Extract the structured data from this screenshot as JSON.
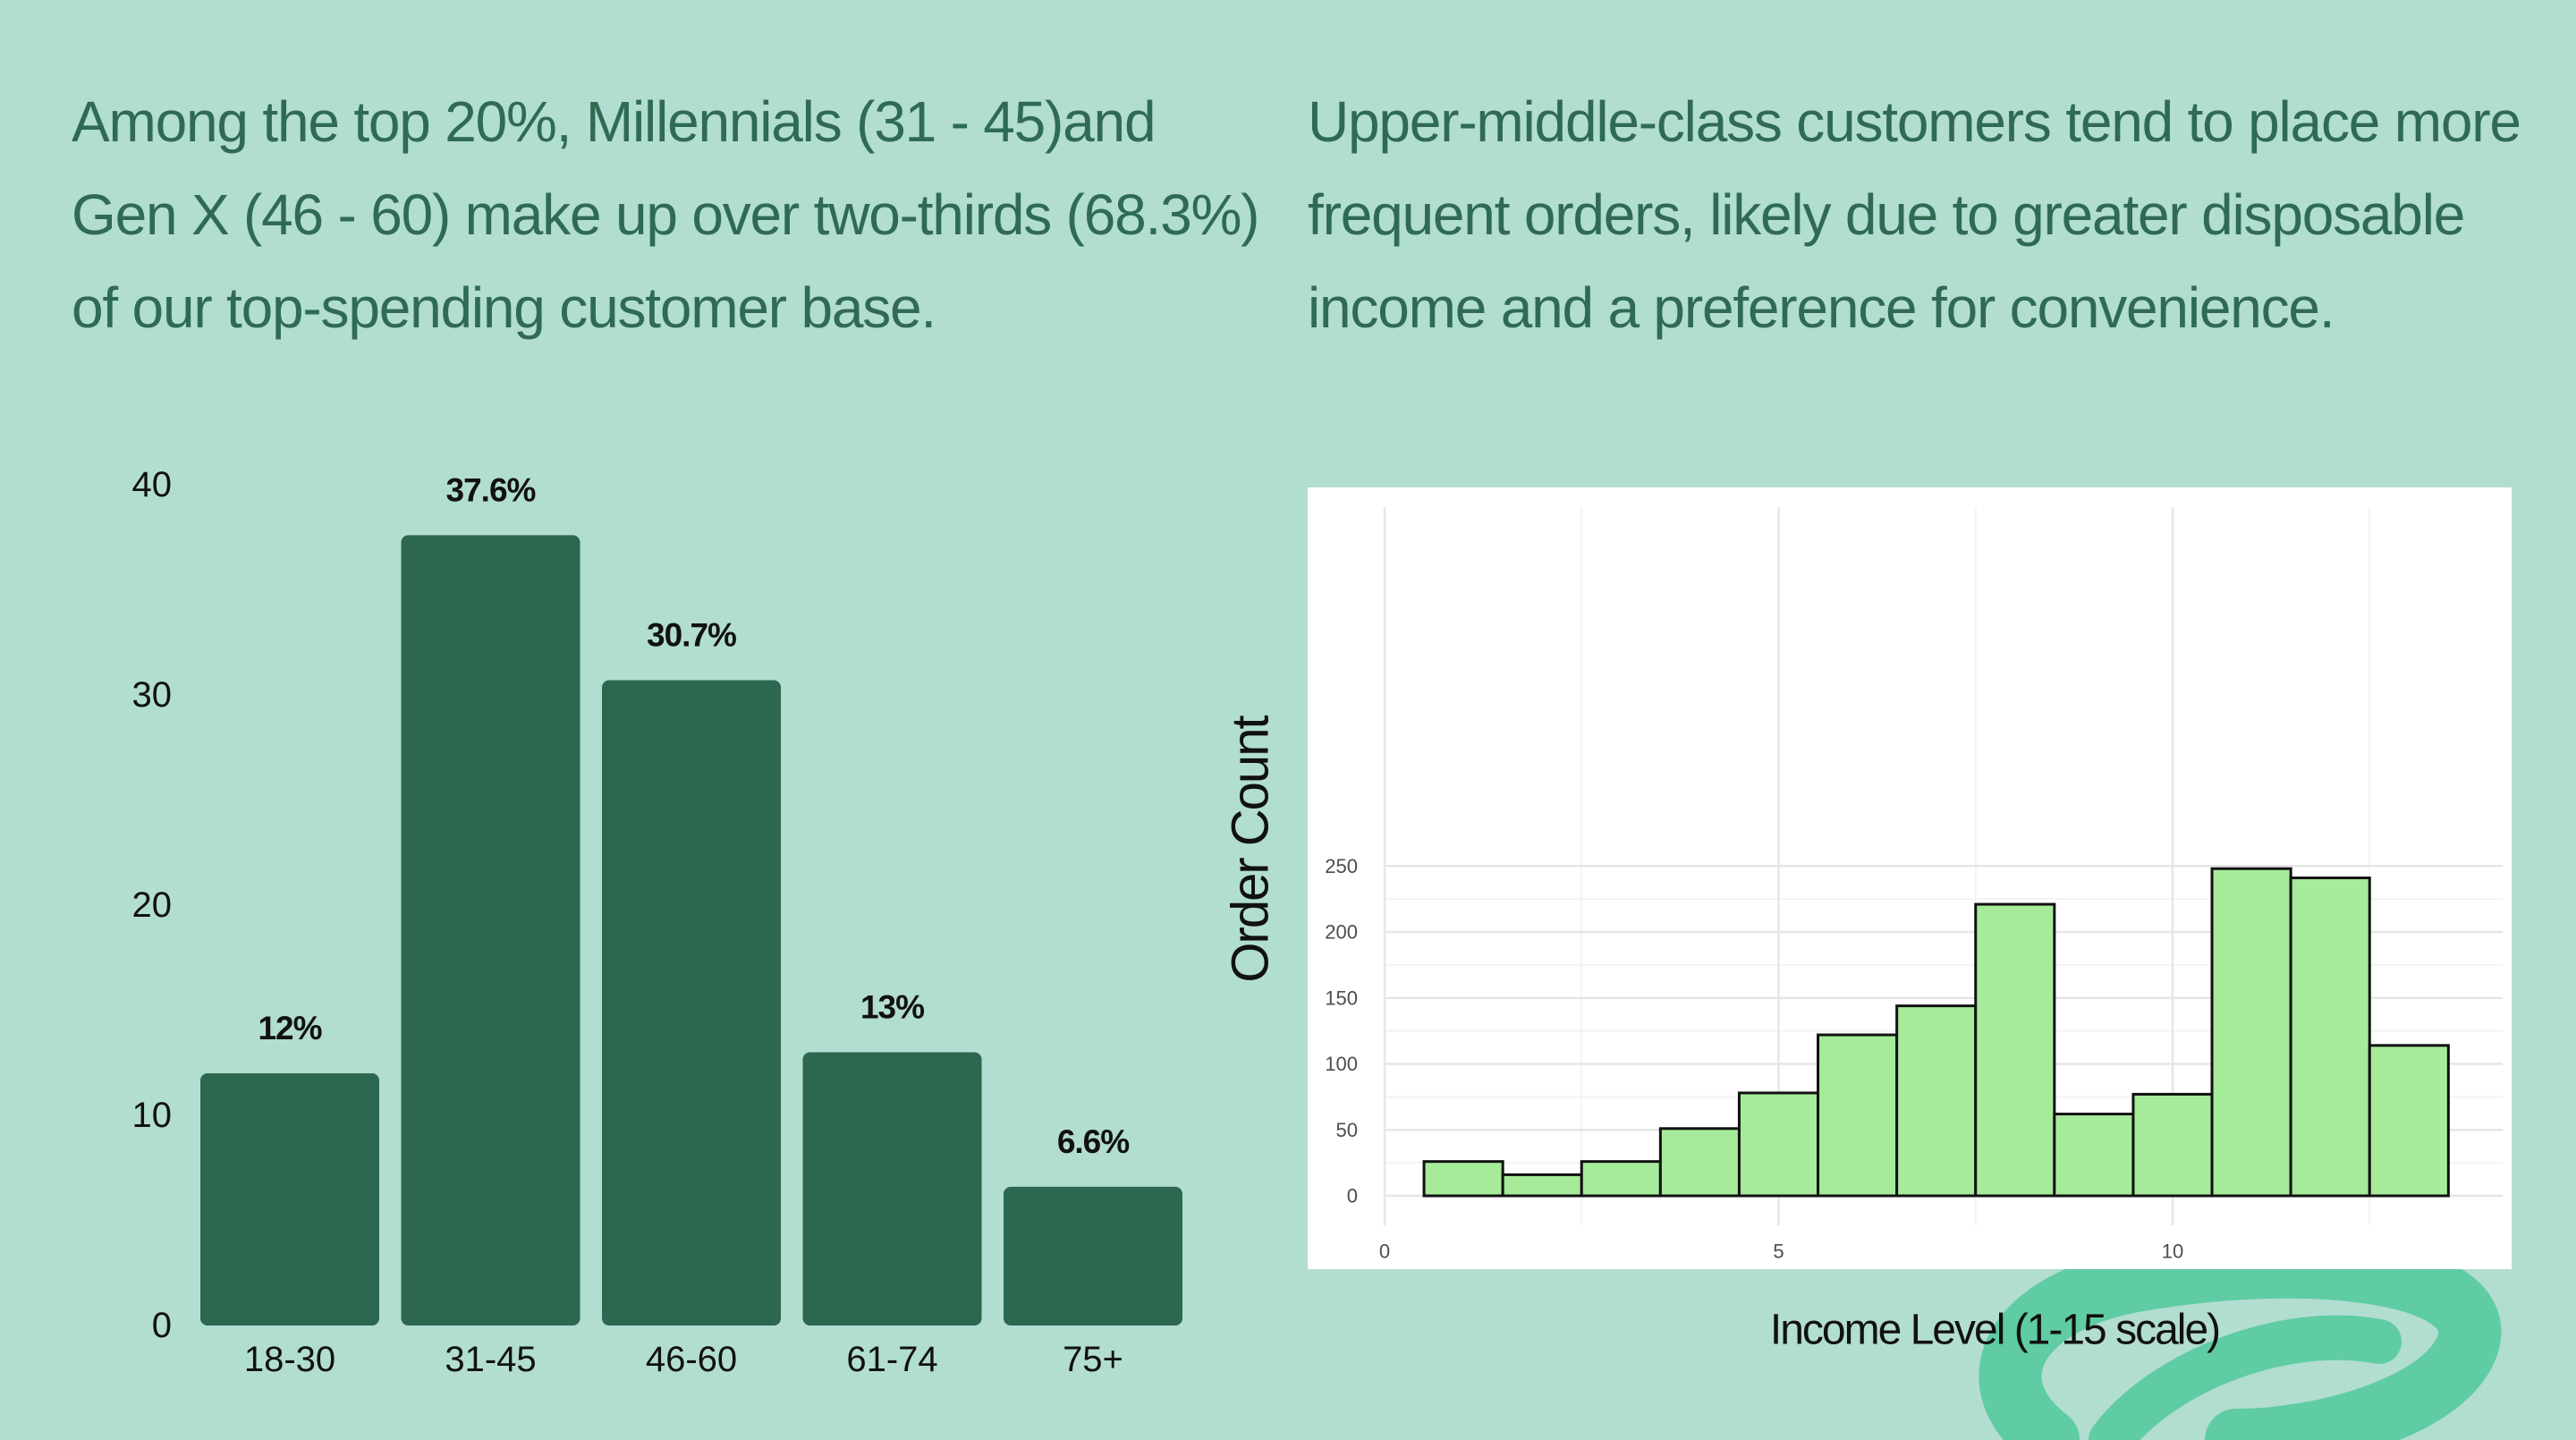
{
  "left_panel": {
    "headline": "Among the top 20%, Millennials (31 - 45)and Gen X (46 - 60) make up over two-thirds (68.3%) of our top-spending customer base."
  },
  "right_panel": {
    "headline": "Upper-middle-class customers tend to place more frequent orders, likely due to greater disposable income and a preference for convenience."
  },
  "colors": {
    "background": "#b2ddd1",
    "headline_text": "#2f6b53",
    "bar_fill": "#2c6850",
    "hist_fill": "#a6eb9a",
    "hist_stroke": "#111111",
    "decoration": "#5fcca3"
  },
  "chart_data": [
    {
      "type": "bar",
      "categories": [
        "18-30",
        "31-45",
        "46-60",
        "61-74",
        "75+"
      ],
      "values": [
        12,
        37.6,
        30.7,
        13,
        6.6
      ],
      "data_labels": [
        "12%",
        "37.6%",
        "30.7%",
        "13%",
        "6.6%"
      ],
      "ylim": [
        0,
        40
      ],
      "yticks": [
        0,
        10,
        20,
        30,
        40
      ],
      "ytick_labels": [
        "0",
        "10",
        "20",
        "30",
        "40"
      ],
      "title": "",
      "xlabel": "",
      "ylabel": "",
      "grid": false,
      "legend": "none"
    },
    {
      "type": "bar",
      "subtype": "histogram",
      "bin_width": 1,
      "bin_starts": [
        0.5,
        1.5,
        2.5,
        3.5,
        4.5,
        5.5,
        6.5,
        7.5,
        8.5,
        9.5,
        10.5,
        11.5,
        12.5
      ],
      "values": [
        26,
        16,
        26,
        51,
        78,
        122,
        144,
        221,
        62,
        77,
        248,
        241,
        114
      ],
      "xlim": [
        0,
        14
      ],
      "xticks": [
        0,
        5,
        10
      ],
      "xtick_labels": [
        "0",
        "5",
        "10"
      ],
      "ylim": [
        0,
        260
      ],
      "yticks": [
        0,
        50,
        100,
        150,
        200,
        250
      ],
      "ytick_labels": [
        "0",
        "50",
        "100",
        "150",
        "200",
        "250"
      ],
      "xlabel": "Income Level (1-15 scale)",
      "ylabel": "Order Count",
      "title": "",
      "grid": true,
      "legend": "none"
    }
  ]
}
